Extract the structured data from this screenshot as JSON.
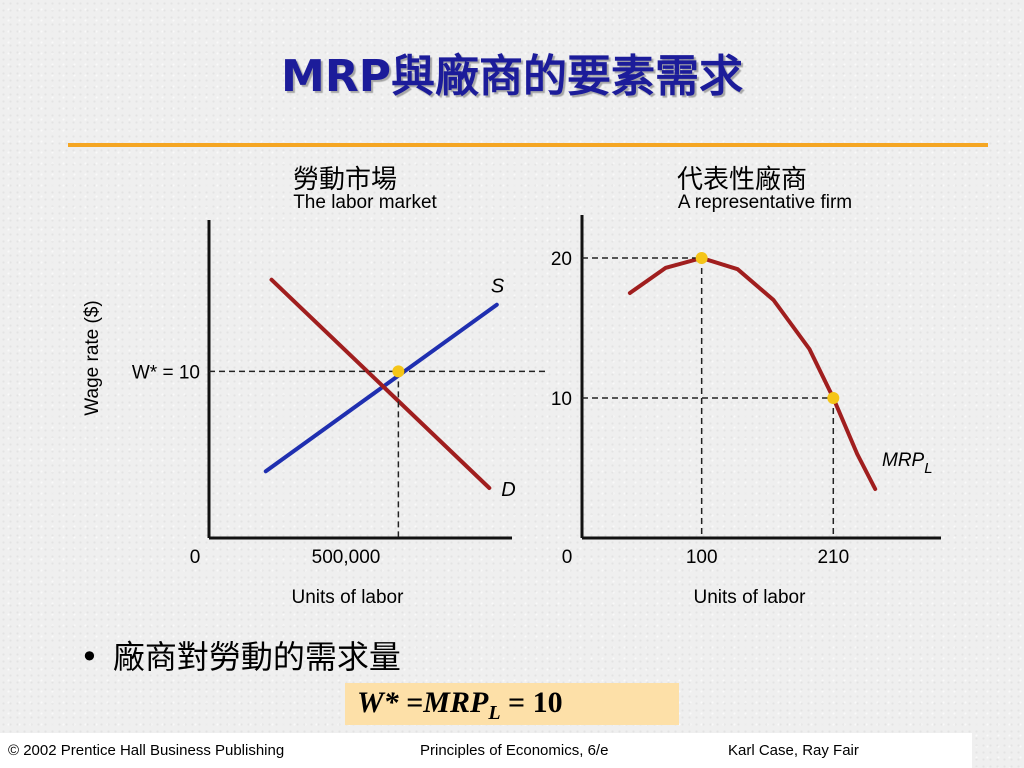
{
  "slide": {
    "title": "MRP與廠商的要素需求",
    "accent_color": "#f5a623",
    "title_color": "#1c1c9a"
  },
  "chart_data": [
    {
      "type": "line",
      "heading_zh": "勞動市場",
      "heading_en": "The labor market",
      "xlabel": "Units of labor",
      "ylabel": "Wage rate ($)",
      "x_ticks": [
        "0",
        "500,000"
      ],
      "y_ticks": [
        "W* = 10"
      ],
      "xlim": [
        0,
        800000
      ],
      "ylim": [
        0,
        18
      ],
      "series": [
        {
          "name": "S",
          "color": "#1f2fb0",
          "points": [
            [
              150000,
              4
            ],
            [
              760000,
              14
            ]
          ]
        },
        {
          "name": "D",
          "color": "#a01e1e",
          "points": [
            [
              165000,
              15.5
            ],
            [
              740000,
              3
            ]
          ]
        }
      ],
      "equilibrium": {
        "x": 500000,
        "y": 10
      },
      "marker_color": "#f5c518"
    },
    {
      "type": "line",
      "heading_zh": "代表性廠商",
      "heading_en": "A representative firm",
      "xlabel": "Units of labor",
      "ylabel": "",
      "x_ticks": [
        "0",
        "100",
        "210"
      ],
      "y_ticks": [
        "10",
        "20"
      ],
      "xlim": [
        0,
        300
      ],
      "ylim": [
        0,
        22.5
      ],
      "series": [
        {
          "name": "MRP",
          "name_subscript": "L",
          "color": "#a01e1e",
          "points": [
            [
              40,
              17.5
            ],
            [
              70,
              19.3
            ],
            [
              100,
              20
            ],
            [
              130,
              19.2
            ],
            [
              160,
              17
            ],
            [
              190,
              13.5
            ],
            [
              210,
              10
            ],
            [
              230,
              6
            ],
            [
              245,
              3.5
            ]
          ]
        }
      ],
      "markers": [
        {
          "x": 100,
          "y": 20
        },
        {
          "x": 210,
          "y": 10
        }
      ],
      "marker_color": "#f5c518"
    }
  ],
  "bullet": {
    "marker": "•",
    "text": "廠商對勞動的需求量"
  },
  "formula": {
    "lhs": "W*",
    "eq1": " =",
    "mrp": "MRP",
    "sub": "L",
    "eq2": " = 10",
    "background": "#fde0a8"
  },
  "footer": {
    "copyright": "© 2002 Prentice Hall Business Publishing",
    "book": "Principles of Economics, 6/e",
    "authors": "Karl Case, Ray Fair"
  }
}
